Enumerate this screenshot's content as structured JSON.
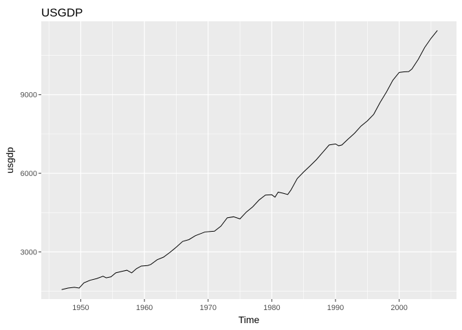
{
  "chart_data": {
    "type": "line",
    "title": "USGDP",
    "xlabel": "Time",
    "ylabel": "usgdp",
    "xlim": [
      1943.8,
      2009.0
    ],
    "ylim": [
      1200,
      11800
    ],
    "x_ticks": [
      1950,
      1960,
      1970,
      1980,
      1990,
      2000
    ],
    "x_tick_labels": [
      "1950",
      "1960",
      "1970",
      "1980",
      "1990",
      "2000"
    ],
    "y_ticks": [
      3000,
      6000,
      9000
    ],
    "y_tick_labels": [
      "3000",
      "6000",
      "9000"
    ],
    "grid": true,
    "background": "#ebebeb",
    "grid_color": "#ffffff",
    "line_color": "#000000",
    "series": [
      {
        "x": [
          1947.0,
          1948.0,
          1949.0,
          1949.75,
          1950.5,
          1951.5,
          1952.5,
          1953.5,
          1954.0,
          1954.75,
          1955.5,
          1956.5,
          1957.25,
          1958.0,
          1958.75,
          1959.5,
          1960.5,
          1961.0,
          1962.0,
          1963.0,
          1964.0,
          1965.0,
          1966.0,
          1967.0,
          1968.0,
          1969.5,
          1970.5,
          1971.0,
          1972.0,
          1973.0,
          1974.0,
          1975.0,
          1976.0,
          1977.0,
          1978.0,
          1979.0,
          1980.0,
          1980.5,
          1981.0,
          1981.75,
          1982.5,
          1983.0,
          1984.0,
          1985.0,
          1986.0,
          1987.0,
          1988.0,
          1989.0,
          1990.0,
          1990.5,
          1991.0,
          1992.0,
          1993.0,
          1994.0,
          1995.0,
          1996.0,
          1997.0,
          1998.0,
          1999.0,
          2000.0,
          2000.75,
          2001.5,
          2002.0,
          2003.0,
          2004.0,
          2005.0,
          2006.0
        ],
        "y": [
          1560,
          1620,
          1650,
          1620,
          1820,
          1920,
          1980,
          2070,
          2010,
          2050,
          2200,
          2260,
          2300,
          2200,
          2360,
          2460,
          2480,
          2520,
          2700,
          2800,
          2980,
          3180,
          3400,
          3470,
          3620,
          3760,
          3780,
          3790,
          3980,
          4300,
          4340,
          4260,
          4520,
          4720,
          4980,
          5170,
          5180,
          5090,
          5280,
          5240,
          5190,
          5360,
          5800,
          6050,
          6280,
          6520,
          6800,
          7080,
          7120,
          7050,
          7080,
          7310,
          7530,
          7800,
          8000,
          8250,
          8700,
          9100,
          9550,
          9850,
          9870,
          9880,
          9980,
          10350,
          10800,
          11150,
          11450
        ]
      }
    ]
  }
}
